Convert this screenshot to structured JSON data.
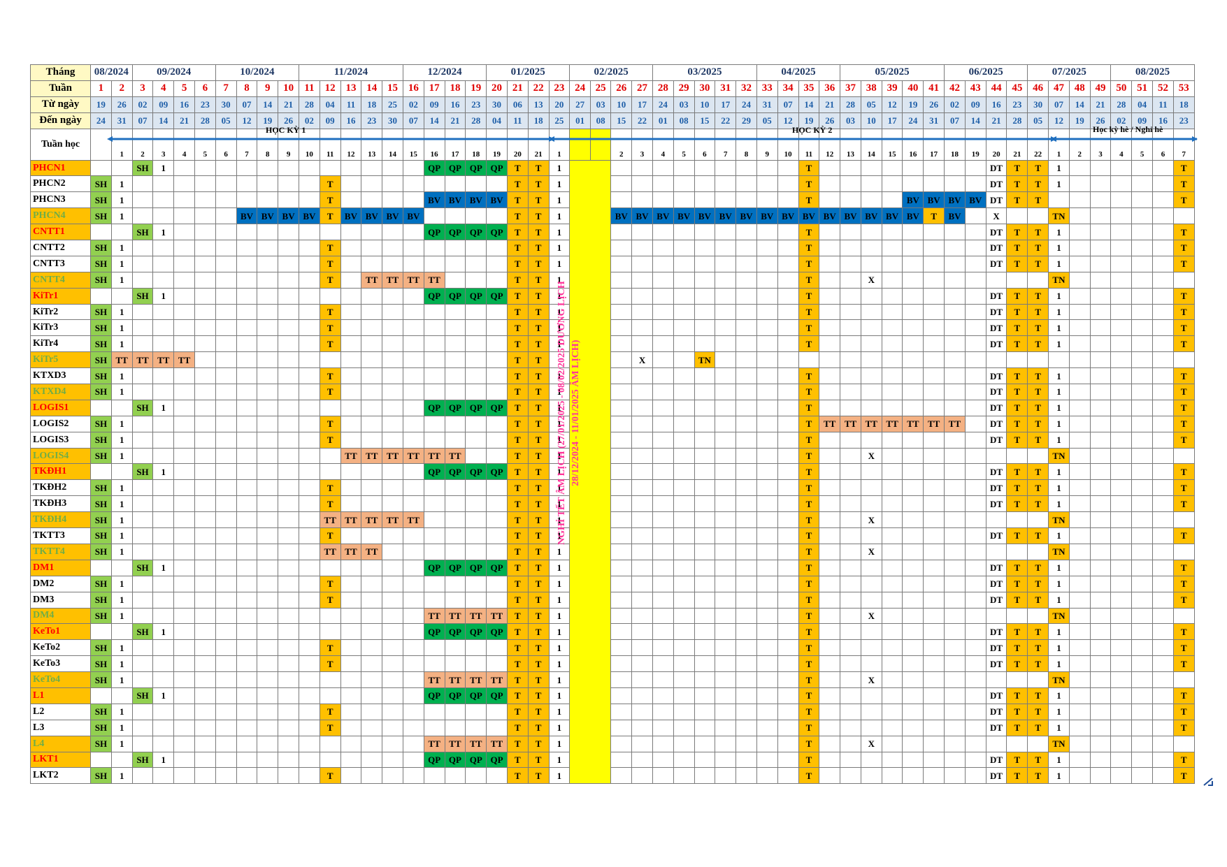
{
  "header": {
    "month_label": "Tháng",
    "week_label": "Tuần",
    "from_label": "Từ ngày",
    "to_label": "Đến ngày",
    "study_week_label": "Tuần học"
  },
  "months": [
    [
      "08/2024",
      2
    ],
    [
      "09/2024",
      4
    ],
    [
      "10/2024",
      4
    ],
    [
      "11/2024",
      5
    ],
    [
      "12/2024",
      4
    ],
    [
      "01/2025",
      4
    ],
    [
      "02/2025",
      4
    ],
    [
      "03/2025",
      5
    ],
    [
      "04/2025",
      4
    ],
    [
      "05/2025",
      5
    ],
    [
      "06/2025",
      4
    ],
    [
      "07/2025",
      4
    ],
    [
      "08/2025",
      4
    ]
  ],
  "week_numbers": [
    "1",
    "2",
    "3",
    "4",
    "5",
    "6",
    "7",
    "8",
    "9",
    "10",
    "11",
    "12",
    "13",
    "14",
    "15",
    "16",
    "17",
    "18",
    "19",
    "20",
    "21",
    "22",
    "23",
    "24",
    "25",
    "26",
    "27",
    "28",
    "29",
    "30",
    "31",
    "32",
    "33",
    "34",
    "35",
    "36",
    "37",
    "38",
    "39",
    "40",
    "41",
    "42",
    "43",
    "44",
    "45",
    "46",
    "47",
    "48",
    "49",
    "50",
    "51",
    "52",
    "53"
  ],
  "from_dates": [
    "19",
    "26",
    "02",
    "09",
    "16",
    "23",
    "30",
    "07",
    "14",
    "21",
    "28",
    "04",
    "11",
    "18",
    "25",
    "02",
    "09",
    "16",
    "23",
    "30",
    "06",
    "13",
    "20",
    "27",
    "03",
    "10",
    "17",
    "24",
    "03",
    "10",
    "17",
    "24",
    "31",
    "07",
    "14",
    "21",
    "28",
    "05",
    "12",
    "19",
    "26",
    "02",
    "09",
    "16",
    "23",
    "30",
    "07",
    "14",
    "21",
    "28",
    "04",
    "11",
    "18"
  ],
  "to_dates": [
    "24",
    "31",
    "07",
    "14",
    "21",
    "28",
    "05",
    "12",
    "19",
    "26",
    "02",
    "09",
    "16",
    "23",
    "30",
    "07",
    "14",
    "21",
    "28",
    "04",
    "11",
    "18",
    "25",
    "01",
    "08",
    "15",
    "22",
    "01",
    "08",
    "15",
    "22",
    "29",
    "05",
    "12",
    "19",
    "26",
    "03",
    "10",
    "17",
    "24",
    "31",
    "07",
    "14",
    "21",
    "28",
    "05",
    "12",
    "19",
    "26",
    "02",
    "09",
    "16",
    "23"
  ],
  "study_weeks": [
    "",
    "1",
    "2",
    "3",
    "4",
    "5",
    "6",
    "7",
    "8",
    "9",
    "10",
    "11",
    "12",
    "13",
    "14",
    "15",
    "16",
    "17",
    "18",
    "19",
    "20",
    "21",
    "1",
    "",
    "",
    "2",
    "3",
    "4",
    "5",
    "6",
    "7",
    "8",
    "9",
    "10",
    "11",
    "12",
    "13",
    "14",
    "15",
    "16",
    "17",
    "18",
    "19",
    "20",
    "21",
    "22",
    "1",
    "2",
    "3",
    "4",
    "5",
    "6",
    "7"
  ],
  "segments": {
    "hk1": "HỌC KỲ 1",
    "hk2": "HỌC KỲ 2",
    "summer": "Học kỳ hè / Nghỉ hè"
  },
  "tet_lines": [
    "NGHỈ TẾT ÂM LỊCH (27/01/2025 - 08/02/2025 DƯƠNG LỊCH",
    "28/12/2024 - 11/01/2025 ÂM LỊCH)"
  ],
  "colors": {
    "SH": "#92d050",
    "QP": "#00b050",
    "T": "#ffc000",
    "TN": "#ffc000",
    "BV": "#0070c0",
    "TT": "#f4b183",
    "tet": "#ffff00",
    "label_bg": "#fff9c4"
  },
  "classes": [
    {
      "name": "PHCN1",
      "color": "red",
      "cells": {
        "3": "SH",
        "4": "1",
        "17": "QP",
        "18": "QP",
        "19": "QP",
        "20": "QP",
        "21": "T",
        "22": "T",
        "23": "1",
        "35": "T",
        "44": "DT",
        "45": "T",
        "46": "T",
        "47": "1",
        "53": "T"
      }
    },
    {
      "name": "PHCN2",
      "color": "black",
      "cells": {
        "1": "SH",
        "2": "1",
        "12": "T",
        "21": "T",
        "22": "T",
        "23": "1",
        "35": "T",
        "44": "DT",
        "45": "T",
        "46": "T",
        "47": "1",
        "53": "T"
      }
    },
    {
      "name": "PHCN3",
      "color": "black",
      "cells": {
        "1": "SH",
        "2": "1",
        "12": "T",
        "17": "BV",
        "18": "BV",
        "19": "BV",
        "20": "BV",
        "21": "T",
        "22": "T",
        "23": "1",
        "35": "T",
        "40": "BV",
        "41": "BV",
        "42": "BV",
        "43": "BV",
        "44": "DT",
        "45": "T",
        "46": "T",
        "53": "T"
      }
    },
    {
      "name": "PHCN4",
      "color": "green",
      "cells": {
        "1": "SH",
        "2": "1",
        "8": "BV",
        "9": "BV",
        "10": "BV",
        "11": "BV",
        "12": "T",
        "13": "BV",
        "14": "BV",
        "15": "BV",
        "16": "BV",
        "21": "T",
        "22": "T",
        "23": "1",
        "26": "BV",
        "27": "BV",
        "28": "BV",
        "29": "BV",
        "30": "BV",
        "31": "BV",
        "32": "BV",
        "33": "BV",
        "34": "BV",
        "35": "BV",
        "36": "BV",
        "37": "BV",
        "38": "BV",
        "39": "BV",
        "40": "BV",
        "41": "T",
        "42": "BV",
        "44": "X",
        "47": "TN"
      }
    },
    {
      "name": "CNTT1",
      "color": "red",
      "cells": {
        "3": "SH",
        "4": "1",
        "17": "QP",
        "18": "QP",
        "19": "QP",
        "20": "QP",
        "21": "T",
        "22": "T",
        "23": "1",
        "35": "T",
        "44": "DT",
        "45": "T",
        "46": "T",
        "47": "1",
        "53": "T"
      }
    },
    {
      "name": "CNTT2",
      "color": "black",
      "cells": {
        "1": "SH",
        "2": "1",
        "12": "T",
        "21": "T",
        "22": "T",
        "23": "1",
        "35": "T",
        "44": "DT",
        "45": "T",
        "46": "T",
        "47": "1",
        "53": "T"
      }
    },
    {
      "name": "CNTT3",
      "color": "black",
      "cells": {
        "1": "SH",
        "2": "1",
        "12": "T",
        "21": "T",
        "22": "T",
        "23": "1",
        "35": "T",
        "44": "DT",
        "45": "T",
        "46": "T",
        "47": "1",
        "53": "T"
      }
    },
    {
      "name": "CNTT4",
      "color": "green",
      "cells": {
        "1": "SH",
        "2": "1",
        "12": "T",
        "14": "TT",
        "15": "TT",
        "16": "TT",
        "17": "TT",
        "21": "T",
        "22": "T",
        "23": "1",
        "35": "T",
        "38": "X",
        "47": "TN"
      }
    },
    {
      "name": "KiTr1",
      "color": "red",
      "cells": {
        "3": "SH",
        "4": "1",
        "17": "QP",
        "18": "QP",
        "19": "QP",
        "20": "QP",
        "21": "T",
        "22": "T",
        "23": "1",
        "35": "T",
        "44": "DT",
        "45": "T",
        "46": "T",
        "47": "1",
        "53": "T"
      }
    },
    {
      "name": "KiTr2",
      "color": "black",
      "cells": {
        "1": "SH",
        "2": "1",
        "12": "T",
        "21": "T",
        "22": "T",
        "23": "1",
        "35": "T",
        "44": "DT",
        "45": "T",
        "46": "T",
        "47": "1",
        "53": "T"
      }
    },
    {
      "name": "KiTr3",
      "color": "black",
      "cells": {
        "1": "SH",
        "2": "1",
        "12": "T",
        "21": "T",
        "22": "T",
        "23": "1",
        "35": "T",
        "44": "DT",
        "45": "T",
        "46": "T",
        "47": "1",
        "53": "T"
      }
    },
    {
      "name": "KiTr4",
      "color": "black",
      "cells": {
        "1": "SH",
        "2": "1",
        "12": "T",
        "21": "T",
        "22": "T",
        "23": "1",
        "35": "T",
        "44": "DT",
        "45": "T",
        "46": "T",
        "47": "1",
        "53": "T"
      }
    },
    {
      "name": "KiTr5",
      "color": "green",
      "cells": {
        "1": "SH",
        "2": "TT",
        "3": "TT",
        "4": "TT",
        "5": "TT",
        "21": "T",
        "22": "T",
        "27": "X",
        "30": "TN"
      }
    },
    {
      "name": "KTXD3",
      "color": "black",
      "cells": {
        "1": "SH",
        "2": "1",
        "12": "T",
        "21": "T",
        "22": "T",
        "23": "1",
        "35": "T",
        "44": "DT",
        "45": "T",
        "46": "T",
        "47": "1",
        "53": "T"
      }
    },
    {
      "name": "KTXD4",
      "color": "green",
      "cells": {
        "1": "SH",
        "2": "1",
        "12": "T",
        "21": "T",
        "22": "T",
        "23": "1",
        "35": "T",
        "44": "DT",
        "45": "T",
        "46": "T",
        "47": "1",
        "53": "T"
      }
    },
    {
      "name": "LOGIS1",
      "color": "red",
      "cells": {
        "3": "SH",
        "4": "1",
        "17": "QP",
        "18": "QP",
        "19": "QP",
        "20": "QP",
        "21": "T",
        "22": "T",
        "23": "1",
        "35": "T",
        "44": "DT",
        "45": "T",
        "46": "T",
        "47": "1",
        "53": "T"
      }
    },
    {
      "name": "LOGIS2",
      "color": "black",
      "cells": {
        "1": "SH",
        "2": "1",
        "12": "T",
        "21": "T",
        "22": "T",
        "23": "1",
        "35": "T",
        "36": "TT",
        "37": "TT",
        "38": "TT",
        "39": "TT",
        "40": "TT",
        "41": "TT",
        "42": "TT",
        "44": "DT",
        "45": "T",
        "46": "T",
        "47": "1",
        "53": "T"
      }
    },
    {
      "name": "LOGIS3",
      "color": "black",
      "cells": {
        "1": "SH",
        "2": "1",
        "12": "T",
        "21": "T",
        "22": "T",
        "23": "1",
        "35": "T",
        "44": "DT",
        "45": "T",
        "46": "T",
        "47": "1",
        "53": "T"
      }
    },
    {
      "name": "LOGIS4",
      "color": "green",
      "cells": {
        "1": "SH",
        "2": "1",
        "13": "TT",
        "14": "TT",
        "15": "TT",
        "16": "TT",
        "17": "TT",
        "18": "TT",
        "21": "T",
        "22": "T",
        "23": "1",
        "35": "T",
        "38": "X",
        "47": "TN"
      }
    },
    {
      "name": "TKĐH1",
      "color": "red",
      "cells": {
        "3": "SH",
        "4": "1",
        "17": "QP",
        "18": "QP",
        "19": "QP",
        "20": "QP",
        "21": "T",
        "22": "T",
        "23": "1",
        "35": "T",
        "44": "DT",
        "45": "T",
        "46": "T",
        "47": "1",
        "53": "T"
      }
    },
    {
      "name": "TKĐH2",
      "color": "black",
      "cells": {
        "1": "SH",
        "2": "1",
        "12": "T",
        "21": "T",
        "22": "T",
        "23": "1",
        "35": "T",
        "44": "DT",
        "45": "T",
        "46": "T",
        "47": "1",
        "53": "T"
      }
    },
    {
      "name": "TKĐH3",
      "color": "black",
      "cells": {
        "1": "SH",
        "2": "1",
        "12": "T",
        "21": "T",
        "22": "T",
        "23": "1",
        "35": "T",
        "44": "DT",
        "45": "T",
        "46": "T",
        "47": "1",
        "53": "T"
      }
    },
    {
      "name": "TKĐH4",
      "color": "green",
      "cells": {
        "1": "SH",
        "2": "1",
        "12": "TT",
        "13": "TT",
        "14": "TT",
        "15": "TT",
        "16": "TT",
        "21": "T",
        "22": "T",
        "23": "1",
        "35": "T",
        "38": "X",
        "47": "TN"
      }
    },
    {
      "name": "TKTT3",
      "color": "black",
      "cells": {
        "1": "SH",
        "2": "1",
        "12": "T",
        "21": "T",
        "22": "T",
        "23": "1",
        "35": "T",
        "44": "DT",
        "45": "T",
        "46": "T",
        "47": "1",
        "53": "T"
      }
    },
    {
      "name": "TKTT4",
      "color": "green",
      "cells": {
        "1": "SH",
        "2": "1",
        "12": "TT",
        "13": "TT",
        "14": "TT",
        "21": "T",
        "22": "T",
        "23": "1",
        "35": "T",
        "38": "X",
        "47": "TN"
      }
    },
    {
      "name": "DM1",
      "color": "red",
      "cells": {
        "3": "SH",
        "4": "1",
        "17": "QP",
        "18": "QP",
        "19": "QP",
        "20": "QP",
        "21": "T",
        "22": "T",
        "23": "1",
        "35": "T",
        "44": "DT",
        "45": "T",
        "46": "T",
        "47": "1",
        "53": "T"
      }
    },
    {
      "name": "DM2",
      "color": "black",
      "cells": {
        "1": "SH",
        "2": "1",
        "12": "T",
        "21": "T",
        "22": "T",
        "23": "1",
        "35": "T",
        "44": "DT",
        "45": "T",
        "46": "T",
        "47": "1",
        "53": "T"
      }
    },
    {
      "name": "DM3",
      "color": "black",
      "cells": {
        "1": "SH",
        "2": "1",
        "12": "T",
        "21": "T",
        "22": "T",
        "23": "1",
        "35": "T",
        "44": "DT",
        "45": "T",
        "46": "T",
        "47": "1",
        "53": "T"
      }
    },
    {
      "name": "DM4",
      "color": "green",
      "cells": {
        "1": "SH",
        "2": "1",
        "17": "TT",
        "18": "TT",
        "19": "TT",
        "20": "TT",
        "21": "T",
        "22": "T",
        "23": "1",
        "35": "T",
        "38": "X",
        "47": "TN"
      }
    },
    {
      "name": "KeTo1",
      "color": "red",
      "cells": {
        "3": "SH",
        "4": "1",
        "17": "QP",
        "18": "QP",
        "19": "QP",
        "20": "QP",
        "21": "T",
        "22": "T",
        "23": "1",
        "35": "T",
        "44": "DT",
        "45": "T",
        "46": "T",
        "47": "1",
        "53": "T"
      }
    },
    {
      "name": "KeTo2",
      "color": "black",
      "cells": {
        "1": "SH",
        "2": "1",
        "12": "T",
        "21": "T",
        "22": "T",
        "23": "1",
        "35": "T",
        "44": "DT",
        "45": "T",
        "46": "T",
        "47": "1",
        "53": "T"
      }
    },
    {
      "name": "KeTo3",
      "color": "black",
      "cells": {
        "1": "SH",
        "2": "1",
        "12": "T",
        "21": "T",
        "22": "T",
        "23": "1",
        "35": "T",
        "44": "DT",
        "45": "T",
        "46": "T",
        "47": "1",
        "53": "T"
      }
    },
    {
      "name": "KeTo4",
      "color": "green",
      "cells": {
        "1": "SH",
        "2": "1",
        "17": "TT",
        "18": "TT",
        "19": "TT",
        "20": "TT",
        "21": "T",
        "22": "T",
        "23": "1",
        "35": "T",
        "38": "X",
        "47": "TN"
      }
    },
    {
      "name": "L1",
      "color": "red",
      "cells": {
        "3": "SH",
        "4": "1",
        "17": "QP",
        "18": "QP",
        "19": "QP",
        "20": "QP",
        "21": "T",
        "22": "T",
        "23": "1",
        "35": "T",
        "44": "DT",
        "45": "T",
        "46": "T",
        "47": "1",
        "53": "T"
      }
    },
    {
      "name": "L2",
      "color": "black",
      "cells": {
        "1": "SH",
        "2": "1",
        "12": "T",
        "21": "T",
        "22": "T",
        "23": "1",
        "35": "T",
        "44": "DT",
        "45": "T",
        "46": "T",
        "47": "1",
        "53": "T"
      }
    },
    {
      "name": "L3",
      "color": "black",
      "cells": {
        "1": "SH",
        "2": "1",
        "12": "T",
        "21": "T",
        "22": "T",
        "23": "1",
        "35": "T",
        "44": "DT",
        "45": "T",
        "46": "T",
        "47": "1",
        "53": "T"
      }
    },
    {
      "name": "L4",
      "color": "green",
      "cells": {
        "1": "SH",
        "2": "1",
        "17": "TT",
        "18": "TT",
        "19": "TT",
        "20": "TT",
        "21": "T",
        "22": "T",
        "23": "1",
        "35": "T",
        "38": "X",
        "47": "TN"
      }
    },
    {
      "name": "LKT1",
      "color": "red",
      "cells": {
        "3": "SH",
        "4": "1",
        "17": "QP",
        "18": "QP",
        "19": "QP",
        "20": "QP",
        "21": "T",
        "22": "T",
        "23": "1",
        "35": "T",
        "44": "DT",
        "45": "T",
        "46": "T",
        "47": "1",
        "53": "T"
      }
    },
    {
      "name": "LKT2",
      "color": "black",
      "cells": {
        "1": "SH",
        "2": "1",
        "12": "T",
        "21": "T",
        "22": "T",
        "23": "1",
        "35": "T",
        "44": "DT",
        "45": "T",
        "46": "T",
        "47": "1",
        "53": "T"
      }
    }
  ]
}
